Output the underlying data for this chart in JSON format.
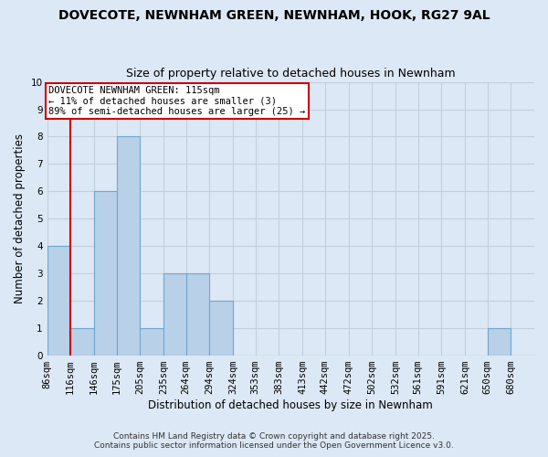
{
  "title": "DOVECOTE, NEWNHAM GREEN, NEWNHAM, HOOK, RG27 9AL",
  "subtitle": "Size of property relative to detached houses in Newnham",
  "xlabel": "Distribution of detached houses by size in Newnham",
  "ylabel": "Number of detached properties",
  "bin_edges": [
    86,
    116,
    146,
    175,
    205,
    235,
    264,
    294,
    324,
    353,
    383,
    413,
    442,
    472,
    502,
    532,
    561,
    591,
    621,
    650,
    680
  ],
  "bin_labels": [
    "86sqm",
    "116sqm",
    "146sqm",
    "175sqm",
    "205sqm",
    "235sqm",
    "264sqm",
    "294sqm",
    "324sqm",
    "353sqm",
    "383sqm",
    "413sqm",
    "442sqm",
    "472sqm",
    "502sqm",
    "532sqm",
    "561sqm",
    "591sqm",
    "621sqm",
    "650sqm",
    "680sqm"
  ],
  "counts": [
    4,
    1,
    6,
    8,
    1,
    3,
    3,
    2,
    0,
    0,
    0,
    0,
    0,
    0,
    0,
    0,
    0,
    0,
    0,
    1,
    0
  ],
  "bar_color": "#b8d0e8",
  "bar_edge_color": "#6fa8d0",
  "reference_line_x": 116,
  "reference_line_color": "#cc0000",
  "annotation_text": "DOVECOTE NEWNHAM GREEN: 115sqm\n← 11% of detached houses are smaller (3)\n89% of semi-detached houses are larger (25) →",
  "annotation_box_color": "#ffffff",
  "annotation_box_edge_color": "#cc0000",
  "ylim": [
    0,
    10
  ],
  "yticks": [
    0,
    1,
    2,
    3,
    4,
    5,
    6,
    7,
    8,
    9,
    10
  ],
  "footer1": "Contains HM Land Registry data © Crown copyright and database right 2025.",
  "footer2": "Contains public sector information licensed under the Open Government Licence v3.0.",
  "bg_color": "#dce8f5",
  "plot_bg_color": "#dce8f5",
  "grid_color": "#c0d0e0",
  "title_fontsize": 10,
  "subtitle_fontsize": 9,
  "axis_label_fontsize": 8.5,
  "tick_fontsize": 7.5,
  "annotation_fontsize": 7.5,
  "footer_fontsize": 6.5
}
